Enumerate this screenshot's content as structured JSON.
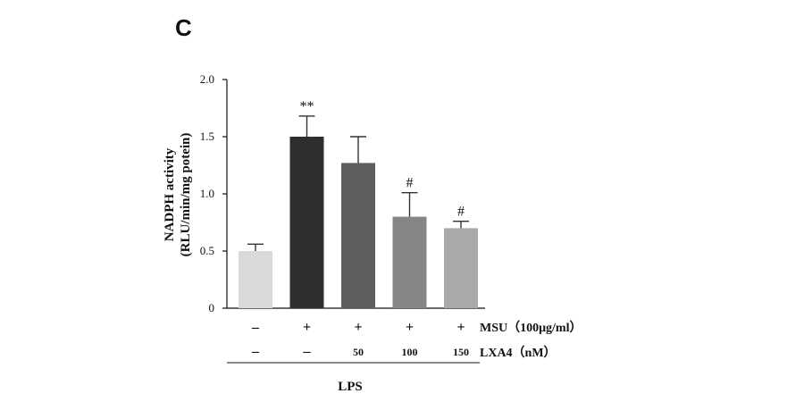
{
  "panel_label": "C",
  "chart_data": {
    "type": "bar",
    "ylabel_line1": "NADPH activity",
    "ylabel_line2": "(RLU/min/mg potein)",
    "ylim": [
      0,
      2.0
    ],
    "yticks": [
      "0",
      "0.5",
      "1.0",
      "1.5",
      "2.0"
    ],
    "ytick_values": [
      0,
      0.5,
      1.0,
      1.5,
      2.0
    ],
    "bars": [
      {
        "value": 0.5,
        "error": 0.06,
        "color": "#d9d9d9",
        "annotation": "",
        "msu": "–",
        "lxa4": "–"
      },
      {
        "value": 1.5,
        "error": 0.18,
        "color": "#2e2e2e",
        "annotation": "**",
        "msu": "+",
        "lxa4": "–"
      },
      {
        "value": 1.27,
        "error": 0.23,
        "color": "#5e5e5e",
        "annotation": "",
        "msu": "+",
        "lxa4": "50"
      },
      {
        "value": 0.8,
        "error": 0.21,
        "color": "#858585",
        "annotation": "#",
        "msu": "+",
        "lxa4": "100"
      },
      {
        "value": 0.7,
        "error": 0.06,
        "color": "#a9a9a9",
        "annotation": "#",
        "msu": "+",
        "lxa4": "150"
      }
    ],
    "row_labels": {
      "msu": "MSU（100μg/ml）",
      "lxa4": "LXA4（nM）"
    },
    "group_label": "LPS"
  }
}
